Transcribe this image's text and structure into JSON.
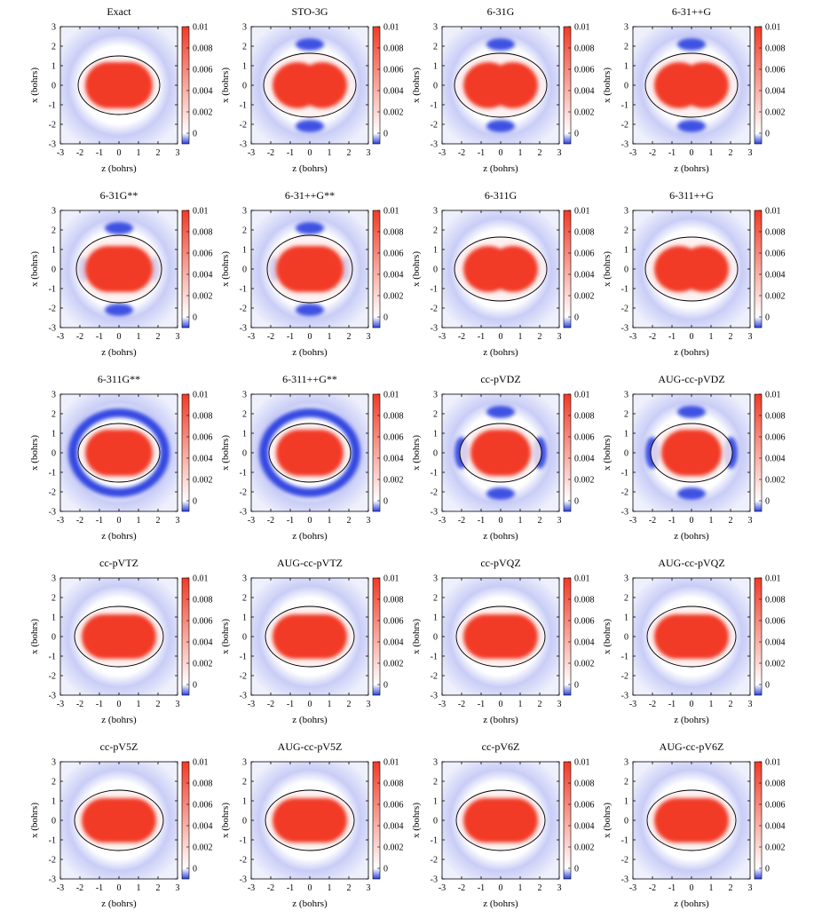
{
  "chart_data": {
    "type": "heatmap",
    "layout": {
      "rows": 5,
      "cols": 4
    },
    "xlabel": "z (bohrs)",
    "ylabel": "x (bohrs)",
    "xlim": [
      -3,
      3
    ],
    "ylim": [
      -3,
      3
    ],
    "x_ticks": [
      "-3",
      "-2",
      "-1",
      "0",
      "1",
      "2",
      "3"
    ],
    "y_ticks": [
      "3",
      "2",
      "1",
      "0",
      "-1",
      "-2",
      "-3"
    ],
    "colorbar": {
      "range": [
        -0.001,
        0.01
      ],
      "tick_labels": [
        "0.01",
        "0.008",
        "0.006",
        "0.004",
        "0.002",
        "0"
      ],
      "colors": {
        "negative": "#2b3fe0",
        "zero": "#ffffff",
        "positive": "#f23a26"
      }
    },
    "panels": [
      {
        "title": "Exact"
      },
      {
        "title": "STO-3G"
      },
      {
        "title": "6-31G"
      },
      {
        "title": "6-31++G"
      },
      {
        "title": "6-31G**"
      },
      {
        "title": "6-31++G**"
      },
      {
        "title": "6-311G"
      },
      {
        "title": "6-311++G"
      },
      {
        "title": "6-311G**"
      },
      {
        "title": "6-311++G**"
      },
      {
        "title": "cc-pVDZ"
      },
      {
        "title": "AUG-cc-pVDZ"
      },
      {
        "title": "cc-pVTZ"
      },
      {
        "title": "AUG-cc-pVTZ"
      },
      {
        "title": "cc-pVQZ"
      },
      {
        "title": "AUG-cc-pVQZ"
      },
      {
        "title": "cc-pV5Z"
      },
      {
        "title": "AUG-cc-pV5Z"
      },
      {
        "title": "cc-pV6Z"
      },
      {
        "title": "AUG-cc-pV6Z"
      }
    ]
  }
}
